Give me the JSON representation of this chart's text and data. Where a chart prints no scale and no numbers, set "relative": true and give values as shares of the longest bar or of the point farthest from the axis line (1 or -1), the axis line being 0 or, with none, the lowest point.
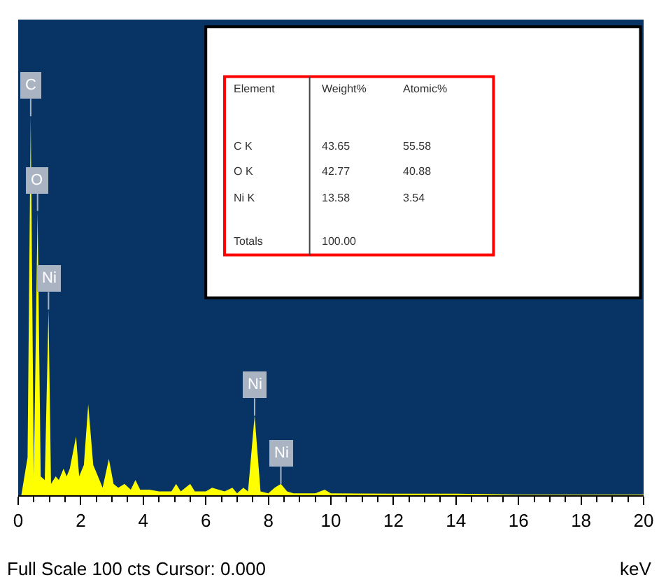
{
  "chart_data": {
    "type": "area",
    "relative": true,
    "xlabel": "keV",
    "xlim": [
      0,
      20
    ],
    "xticks": [
      0,
      2,
      4,
      6,
      8,
      10,
      12,
      14,
      16,
      18,
      20
    ],
    "x": [
      0.1,
      0.3,
      0.4,
      0.5,
      0.62,
      0.72,
      0.85,
      0.97,
      1.05,
      1.2,
      1.3,
      1.45,
      1.55,
      1.65,
      1.85,
      1.95,
      2.1,
      2.24,
      2.4,
      2.6,
      2.7,
      2.9,
      3.05,
      3.2,
      3.4,
      3.6,
      3.75,
      3.9,
      4.2,
      4.5,
      4.9,
      5.05,
      5.2,
      5.5,
      5.65,
      6.0,
      6.2,
      6.6,
      6.85,
      7.0,
      7.2,
      7.35,
      7.56,
      7.75,
      8.0,
      8.2,
      8.4,
      8.6,
      8.8,
      9.5,
      9.8,
      10.0,
      12.0,
      14.0,
      16.0,
      20.0
    ],
    "series": [
      {
        "color": "#ffff00",
        "values": [
          0,
          0.1,
          1.0,
          0.05,
          0.75,
          0.05,
          0.04,
          0.49,
          0.03,
          0.05,
          0.04,
          0.07,
          0.05,
          0.07,
          0.155,
          0.05,
          0.08,
          0.24,
          0.08,
          0.04,
          0.02,
          0.096,
          0.03,
          0.02,
          0.03,
          0.015,
          0.04,
          0.015,
          0.015,
          0.01,
          0.01,
          0.03,
          0.01,
          0.03,
          0.01,
          0.01,
          0.02,
          0.01,
          0.02,
          0.005,
          0.02,
          0.01,
          0.21,
          0.01,
          0.005,
          0.02,
          0.03,
          0.01,
          0.005,
          0.005,
          0.015,
          0.005,
          0.004,
          0.004,
          0.002,
          0.002
        ]
      }
    ],
    "annotations": [
      {
        "text": "C",
        "x": 0.4,
        "y": 1.0
      },
      {
        "text": "O",
        "x": 0.62,
        "y": 0.75
      },
      {
        "text": "Ni",
        "x": 0.97,
        "y": 0.49
      },
      {
        "text": "Ni",
        "x": 7.56,
        "y": 0.21
      },
      {
        "text": "Ni",
        "x": 8.4,
        "y": 0.03
      },
      "Element",
      "Weight%",
      "Atomic%",
      "C K",
      "43.65",
      "55.58",
      "O K",
      "42.77",
      "40.88",
      "Ni K",
      "13.58",
      "3.54",
      "Totals",
      "100.00",
      "Full Scale 100 cts Cursor: 0.000"
    ]
  }
}
